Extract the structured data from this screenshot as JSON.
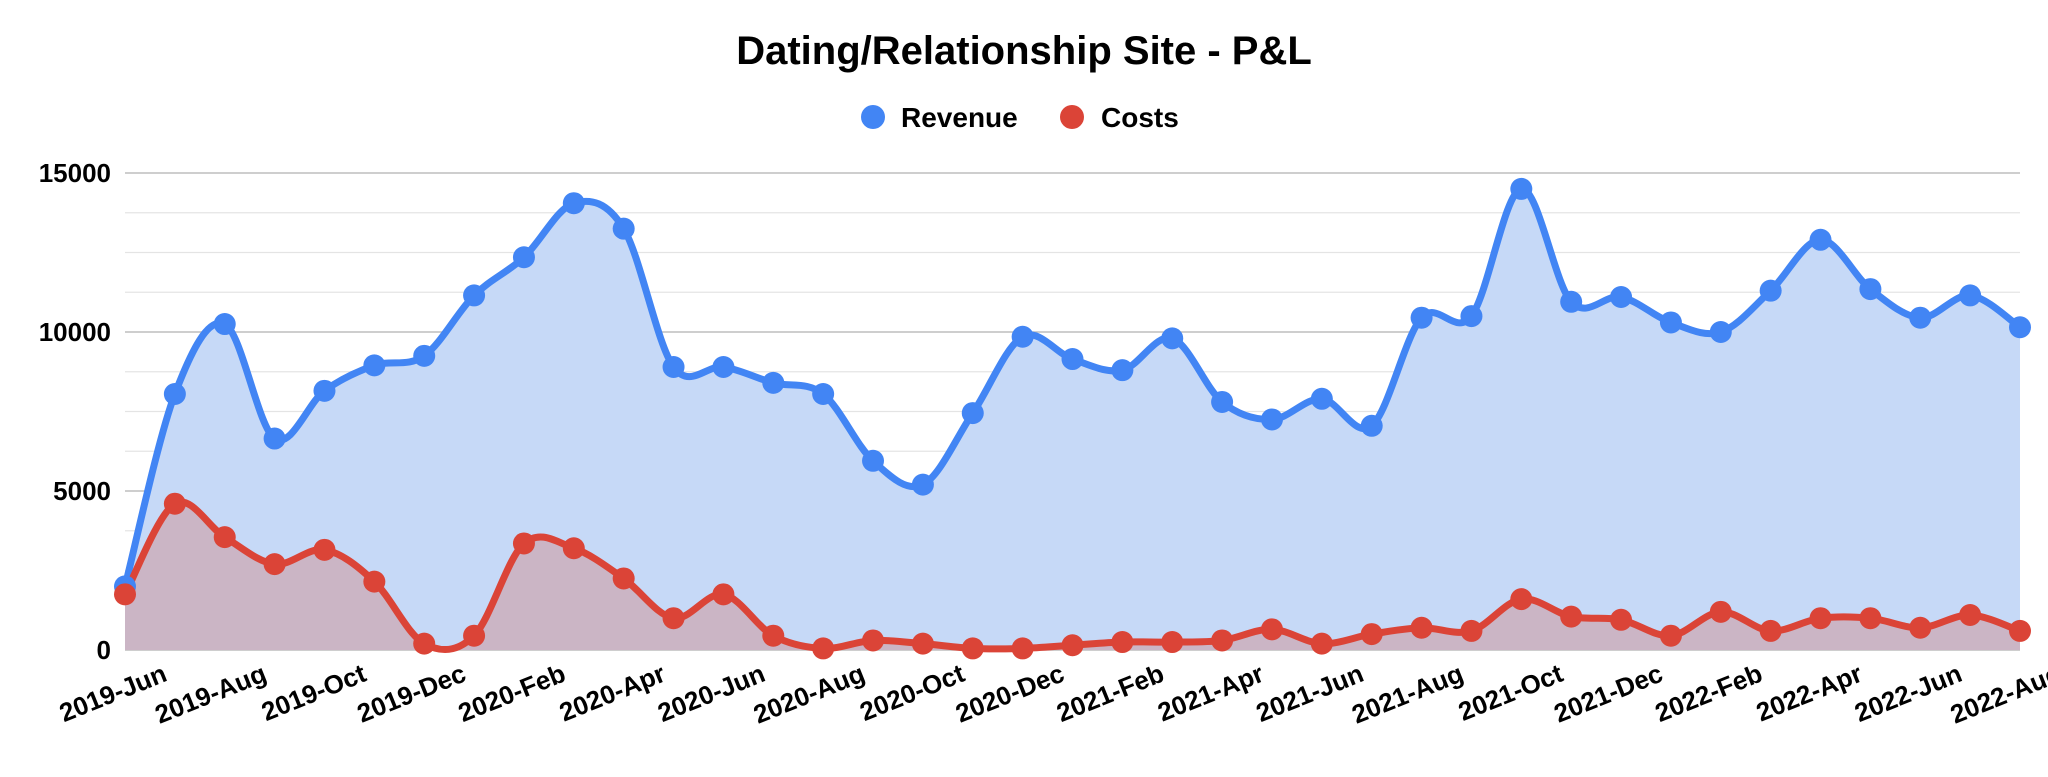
{
  "chart_data": {
    "type": "area",
    "title": "Dating/Relationship Site - P&L",
    "xlabel": "",
    "ylabel": "",
    "ylim": [
      0,
      15000
    ],
    "yticks": [
      0,
      5000,
      10000,
      15000
    ],
    "grid": true,
    "legend_position": "top",
    "x": [
      "2019-Jun",
      "2019-Jul",
      "2019-Aug",
      "2019-Sep",
      "2019-Oct",
      "2019-Nov",
      "2019-Dec",
      "2020-Jan",
      "2020-Feb",
      "2020-Mar",
      "2020-Apr",
      "2020-May",
      "2020-Jun",
      "2020-Jul",
      "2020-Aug",
      "2020-Sep",
      "2020-Oct",
      "2020-Nov",
      "2020-Dec",
      "2021-Jan",
      "2021-Feb",
      "2021-Mar",
      "2021-Apr",
      "2021-May",
      "2021-Jun",
      "2021-Jul",
      "2021-Aug",
      "2021-Sep",
      "2021-Oct",
      "2021-Nov",
      "2021-Dec",
      "2022-Jan",
      "2022-Feb",
      "2022-Mar",
      "2022-Apr",
      "2022-May",
      "2022-Jun",
      "2022-Jul",
      "2022-Aug"
    ],
    "xtick_labels": [
      "2019-Jun",
      "2019-Aug",
      "2019-Oct",
      "2019-Dec",
      "2020-Feb",
      "2020-Apr",
      "2020-Jun",
      "2020-Aug",
      "2020-Oct",
      "2020-Dec",
      "2021-Feb",
      "2021-Apr",
      "2021-Jun",
      "2021-Aug",
      "2021-Oct",
      "2021-Dec",
      "2022-Feb",
      "2022-Apr",
      "2022-Jun",
      "2022-Aug"
    ],
    "series": [
      {
        "name": "Revenue",
        "color": "#4285f4",
        "fill": "#c6d9f7",
        "values": [
          2000,
          8050,
          10250,
          6650,
          8150,
          8950,
          9250,
          11150,
          12350,
          14050,
          13250,
          8900,
          8900,
          8400,
          8050,
          5950,
          5200,
          7450,
          9850,
          9150,
          8800,
          9800,
          7800,
          7250,
          7900,
          7050,
          10450,
          10500,
          14500,
          10950,
          11100,
          10300,
          10000,
          11300,
          12900,
          11350,
          10450,
          11150,
          10150
        ]
      },
      {
        "name": "Costs",
        "color": "#db4437",
        "fill": "#cbaebc",
        "values": [
          1750,
          4600,
          3550,
          2700,
          3150,
          2150,
          200,
          450,
          3350,
          3200,
          2250,
          1000,
          1750,
          450,
          50,
          300,
          200,
          50,
          50,
          150,
          250,
          250,
          300,
          650,
          200,
          500,
          700,
          600,
          1600,
          1050,
          950,
          450,
          1200,
          600,
          1000,
          1000,
          700,
          1100,
          600
        ]
      }
    ]
  }
}
